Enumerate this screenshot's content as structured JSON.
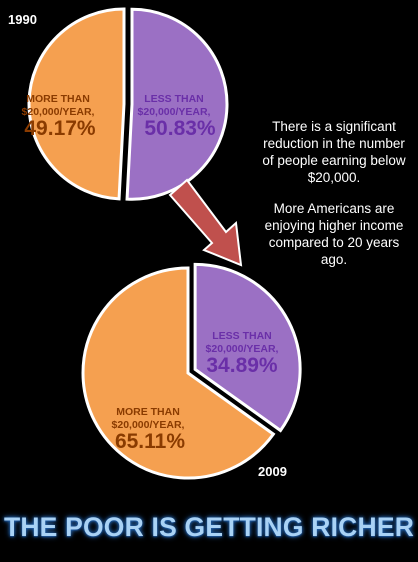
{
  "colors": {
    "background": "#000000",
    "more_than": "#f5a050",
    "less_than": "#9b70c4",
    "more_than_text": "#8a3b00",
    "less_than_text": "#6a2fa8",
    "arrow": "#c0504d",
    "headline": "#a9d2f5"
  },
  "chart_data": [
    {
      "type": "pie",
      "year_label": "1990",
      "slices": [
        {
          "label": "MORE THAN $20,000/YEAR,",
          "value": 49.17,
          "value_label": "49.17%",
          "exploded": false
        },
        {
          "label": "LESS THAN $20,000/YEAR,",
          "value": 50.83,
          "value_label": "50.83%",
          "exploded": true
        }
      ]
    },
    {
      "type": "pie",
      "year_label": "2009",
      "slices": [
        {
          "label": "MORE THAN $20,000/YEAR,",
          "value": 65.11,
          "value_label": "65.11%",
          "exploded": false
        },
        {
          "label": "LESS THAN $20,000/YEAR,",
          "value": 34.89,
          "value_label": "34.89%",
          "exploded": true
        }
      ]
    }
  ],
  "side_text": {
    "para1": "There is a significant reduction in the number of people earning below $20,000.",
    "para2": "More Americans are enjoying higher income compared to 20 years ago."
  },
  "headline": "THE POOR IS GETTING RICHER"
}
